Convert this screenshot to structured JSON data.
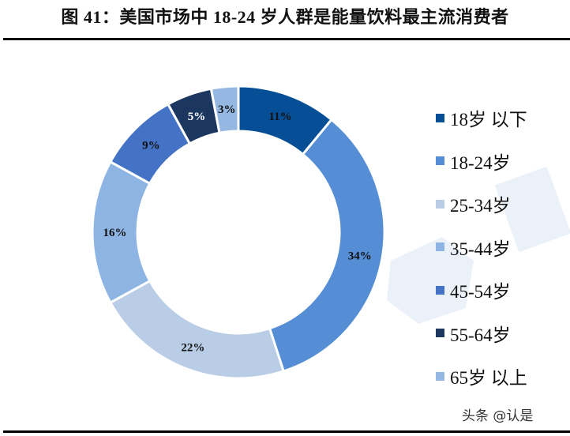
{
  "header": {
    "title": "图 41：美国市场中 18-24 岁人群是能量饮料最主流消费者"
  },
  "chart_data": {
    "type": "pie",
    "subtype": "donut",
    "title": "图 41：美国市场中 18-24 岁人群是能量饮料最主流消费者",
    "categories": [
      "18岁以下",
      "18-24岁",
      "25-34岁",
      "35-44岁",
      "45-54岁",
      "55-64岁",
      "65岁以上"
    ],
    "values": [
      11,
      34,
      22,
      16,
      9,
      5,
      3
    ],
    "labels": [
      "11%",
      "34%",
      "22%",
      "16%",
      "9%",
      "5%",
      "3%"
    ],
    "colors": [
      "#064f97",
      "#558ed5",
      "#b9cde6",
      "#8eb4e3",
      "#4472c4",
      "#1b365f",
      "#95b8e3"
    ],
    "label_colors": [
      "#111111",
      "#111111",
      "#111111",
      "#111111",
      "#111111",
      "#ffffff",
      "#111111"
    ],
    "start_angle_deg": 0,
    "direction": "clockwise",
    "legend_position": "right",
    "unit": "%"
  },
  "legend": {
    "items": [
      {
        "label": "18岁 以下",
        "color": "#064f97"
      },
      {
        "label": "18-24岁",
        "color": "#558ed5"
      },
      {
        "label": "25-34岁",
        "color": "#b9cde6"
      },
      {
        "label": "35-44岁",
        "color": "#8eb4e3"
      },
      {
        "label": "45-54岁",
        "color": "#4472c4"
      },
      {
        "label": "55-64岁",
        "color": "#1b365f"
      },
      {
        "label": "65岁 以上",
        "color": "#95b8e3"
      }
    ]
  },
  "watermark": {
    "text": "头条 @认是"
  }
}
